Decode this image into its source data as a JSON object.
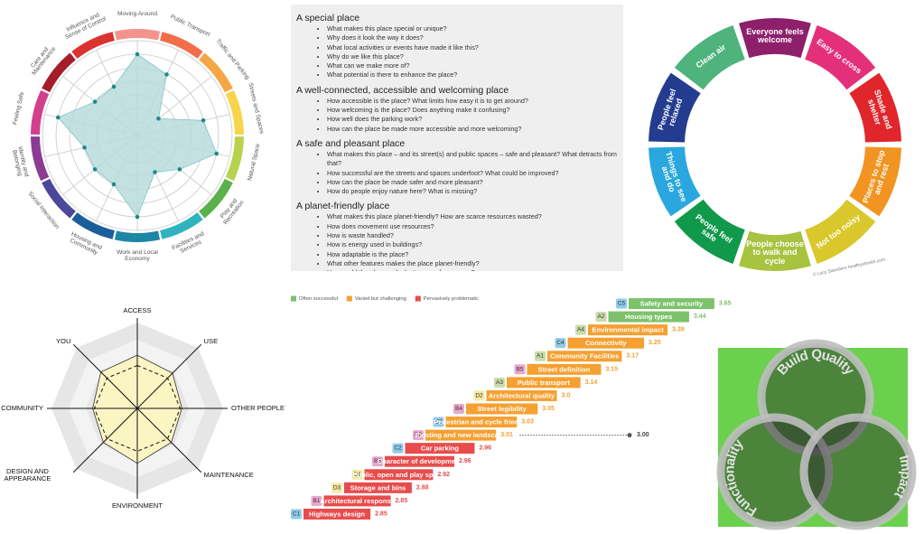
{
  "chart_data": [
    {
      "type": "radar",
      "categories": [
        "Moving Around",
        "Public Transport",
        "Traffic and Parking",
        "Streets and Spaces",
        "Natural Space",
        "Play and Recreation",
        "Facilities and Services",
        "Work and Local Economy",
        "Housing and Community",
        "Social Interaction",
        "Identity and Belonging",
        "Feeling Safe",
        "Care and Maintenance",
        "Influence and Sense of Control"
      ],
      "values": [
        6,
        5,
        2,
        5,
        6,
        4,
        3,
        6,
        4,
        4,
        4,
        6,
        4,
        4
      ],
      "color": "#b9dcdc",
      "point_color": "#1b8a8c",
      "segment_colors": [
        "#f4938e",
        "#f26e4b",
        "#f7a646",
        "#f7d54a",
        "#b8d24d",
        "#5ab04a",
        "#31b3bf",
        "#1e86a5",
        "#1a5e9b",
        "#4b479b",
        "#8b3c92",
        "#d43f8d",
        "#a51d2a",
        "#d9322f"
      ],
      "rlim": [
        0,
        7
      ],
      "rticks": [
        1,
        2,
        3,
        4,
        5,
        6,
        7
      ]
    },
    {
      "type": "radar",
      "categories": [
        "ACCESS",
        "USE",
        "OTHER PEOPLE",
        "MAINTENANCE",
        "ENVIRONMENT",
        "DESIGN AND APPEARANCE",
        "COMMUNITY",
        "YOU"
      ],
      "series": [
        {
          "color": "#fbf5c4",
          "values": [
            3.1,
            2.9,
            2.6,
            2.8,
            3.2,
            2.8,
            2.6,
            3.0
          ]
        },
        {
          "color": "#222222",
          "dashed": true,
          "values": [
            2.5,
            2.5,
            2.5,
            2.5,
            2.5,
            2.5,
            2.5,
            2.5
          ]
        }
      ],
      "band_colors": [
        "#e9e9f5",
        "#f3f3f3",
        "#e6e6e6",
        "#f3f3f3",
        "#e6e6e6"
      ],
      "rlim": [
        0,
        5
      ],
      "rticks": [
        1,
        2,
        3,
        4,
        5
      ]
    },
    {
      "type": "bar",
      "legend": [
        {
          "name": "Often successful",
          "color": "#7dc26b"
        },
        {
          "name": "Varied but challenging",
          "color": "#f5a031"
        },
        {
          "name": "Pervasively problematic",
          "color": "#e84c4c"
        }
      ],
      "codes": [
        "C5",
        "A2",
        "A4",
        "C4",
        "A1",
        "B5",
        "A3",
        "D2",
        "B4",
        "C3",
        "B2",
        "C2",
        "B3",
        "D1",
        "D3",
        "B1",
        "C1"
      ],
      "categories": [
        "Safety and security",
        "Housing types",
        "Environmental impact",
        "Connectivity",
        "Community Facilities",
        "Street definition",
        "Public transport",
        "Architectural quality",
        "Street legibility",
        "Pedestrian and cycle friendly",
        "Existing and new landscape",
        "Car parking",
        "Character of development",
        "Public, open and play space",
        "Storage and bins",
        "Architectural response",
        "Highways design"
      ],
      "values": [
        3.65,
        3.44,
        3.39,
        3.25,
        3.17,
        3.15,
        3.14,
        3.0,
        3.05,
        3.03,
        3.01,
        2.96,
        2.96,
        2.92,
        2.88,
        2.85,
        2.85
      ],
      "value_labels": [
        "3.65",
        "3.44",
        "3.39",
        "3.25",
        "3.17",
        "3.15",
        "3.14",
        "3.0",
        "3.05",
        "3.03",
        "3.01",
        "2.96",
        "2.96",
        "2.92",
        "2.88",
        "2.85",
        "2.85"
      ],
      "colors": [
        "#7dc26b",
        "#7dc26b",
        "#f5a031",
        "#f5a031",
        "#f5a031",
        "#f5a031",
        "#f5a031",
        "#f5a031",
        "#f5a031",
        "#f5a031",
        "#f5a031",
        "#e84c4c",
        "#e84c4c",
        "#e84c4c",
        "#e84c4c",
        "#e84c4c",
        "#e84c4c"
      ],
      "code_colors": {
        "A": "#c9dba8",
        "B": "#e9a7cc",
        "C": "#8fcbea",
        "D": "#f4e9a3"
      },
      "xlim": [
        0,
        4
      ],
      "reference": {
        "value": 3,
        "label": "3.00"
      }
    }
  ],
  "questions": {
    "sections": [
      {
        "heading": "A special place",
        "items": [
          "What makes this place special or unique?",
          "Why does it look the way it does?",
          "What local activities or events have made it like this?",
          "Why do we like this place?",
          "What can we make more of?",
          "What potential is there to enhance the place?"
        ]
      },
      {
        "heading": "A well-connected, accessible and welcoming place",
        "items": [
          "How accessible is the place? What limits how easy it is to get around?",
          "How welcoming is the place? Does anything make it confusing?",
          "How well does the parking work?",
          "How can the place be made more accessible and more welcoming?"
        ]
      },
      {
        "heading": "A safe and pleasant place",
        "items": [
          "What makes this place – and its street(s) and public spaces – safe and pleasant? What detracts from that?",
          "How successful are the streets and spaces underfoot? What could be improved?",
          "How can the place be made safer and more pleasant?",
          "How do people enjoy nature here? What is missing?"
        ]
      },
      {
        "heading": "A planet-friendly place",
        "items": [
          "What makes this place planet-friendly? How are scarce resources wasted?",
          "How does movement use resources?",
          "How is waste handled?",
          "How is energy used in buildings?",
          "How adaptable is the place?",
          "What other features makes the place planet-friendly?",
          "How could the place make better use of resources?"
        ]
      }
    ]
  },
  "wheel": {
    "segments": [
      {
        "label": "Clean air",
        "color": "#4fb37e"
      },
      {
        "label": "Everyone feels welcome",
        "color": "#8e1f6b"
      },
      {
        "label": "Easy to cross",
        "color": "#e4307b"
      },
      {
        "label": "Shade and shelter",
        "color": "#e0262b"
      },
      {
        "label": "Places to stop and rest",
        "color": "#f29422"
      },
      {
        "label": "Not too noisy",
        "color": "#d9c72c"
      },
      {
        "label": "People choose to walk and cycle",
        "color": "#a8c33f"
      },
      {
        "label": "People feel safe",
        "color": "#10994a"
      },
      {
        "label": "Things to see and do",
        "color": "#2aa7de"
      },
      {
        "label": "People feel relaxed",
        "color": "#233c8f"
      }
    ],
    "credit": "© Lucy Saunders   healthystreets.com"
  },
  "venn": {
    "background": "#6ad04e",
    "labels": [
      "Build Quality",
      "Functionality",
      "Impact"
    ]
  }
}
